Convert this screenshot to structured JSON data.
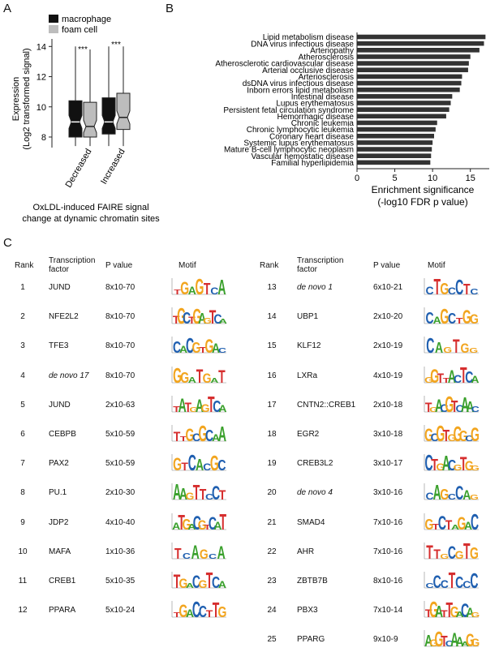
{
  "panels": {
    "a": "A",
    "b": "B",
    "c": "C"
  },
  "panel_a": {
    "legend": [
      "macrophage",
      "foam cell"
    ],
    "colors": {
      "macrophage": "#111111",
      "foam_cell": "#bdbdbd"
    },
    "ylabel": [
      "Expression",
      "(Log2 transformed signal)"
    ],
    "yticks": [
      "8",
      "10",
      "12",
      "14"
    ],
    "categories": [
      "Decreased",
      "Increased"
    ],
    "significance": [
      "***",
      "***"
    ],
    "xlabel": [
      "OxLDL-induced FAIRE signal",
      "change at dynamic chromatin sites"
    ]
  },
  "panel_b": {
    "xlabel": [
      "Enrichment significance",
      "(-log10 FDR p value)"
    ],
    "xticks": [
      "0",
      "5",
      "10",
      "15"
    ]
  },
  "chart_data": [
    {
      "type": "box",
      "categories": [
        "Decreased",
        "Increased"
      ],
      "series": [
        {
          "name": "macrophage",
          "values": [
            {
              "min": 7.4,
              "q1": 8.0,
              "median": 9.0,
              "q3": 10.4,
              "max": 14.0
            },
            {
              "min": 7.4,
              "q1": 8.2,
              "median": 9.0,
              "q3": 10.6,
              "max": 14.0
            }
          ]
        },
        {
          "name": "foam cell",
          "values": [
            {
              "min": 7.4,
              "q1": 8.0,
              "median": 8.7,
              "q3": 10.3,
              "max": 13.8
            },
            {
              "min": 7.4,
              "q1": 8.5,
              "median": 9.3,
              "q3": 10.9,
              "max": 14.0
            }
          ]
        }
      ],
      "ylim": [
        7.3,
        14.5
      ]
    },
    {
      "type": "bar",
      "orientation": "horizontal",
      "categories": [
        "Lipid metabolism disease",
        "DNA virus infectious disease",
        "Arteriopathy",
        "Atherosclerosis",
        "Atherosclerotic cardiovascular disease",
        "Arterial occlusive disease",
        "Arteriosclerosis",
        "dsDNA virus infectious disease",
        "Inborn errors lipid metabolism",
        "Intestinal disease",
        "Lupus erythematosus",
        "Persistent fetal circulation syndrome",
        "Hemorrhagic disease",
        "Chronic leukemia",
        "Chronic lymphocytic leukemia",
        "Coronary heart disease",
        "Systemic lupus erythematosus",
        "Mature B-cell lymphocytic neoplasm",
        "Vascular hemostatic disease",
        "Familial hyperlipidemia"
      ],
      "values": [
        17.0,
        16.8,
        16.2,
        15.0,
        14.8,
        14.7,
        13.9,
        13.8,
        13.6,
        12.6,
        12.4,
        12.2,
        11.8,
        10.6,
        10.4,
        10.2,
        10.0,
        9.9,
        9.8,
        9.7
      ],
      "xlim": [
        0,
        17.5
      ]
    }
  ],
  "table": {
    "headers": {
      "rank": "Rank",
      "tf": [
        "Transcription",
        "factor"
      ],
      "pvalue": "P value",
      "motif": "Motif"
    },
    "rows": [
      {
        "rank": "1",
        "tf": "JUND",
        "p": "8x10-70",
        "motif": "TGAGTCA"
      },
      {
        "rank": "2",
        "tf": "NFE2L2",
        "p": "8x10-70",
        "motif": "TGCTGAGTCA"
      },
      {
        "rank": "3",
        "tf": "TFE3",
        "p": "8x10-70",
        "motif": "CACGTGAC"
      },
      {
        "rank": "4",
        "tf": "de novo 17",
        "p": "8x10-70",
        "motif": "GGATGAT"
      },
      {
        "rank": "5",
        "tf": "JUND",
        "p": "2x10-63",
        "motif": "TATGAGTCA"
      },
      {
        "rank": "6",
        "tf": "CEBPB",
        "p": "5x10-59",
        "motif": "TTGCGCAA"
      },
      {
        "rank": "7",
        "tf": "PAX2",
        "p": "5x10-59",
        "motif": "GTCACGC"
      },
      {
        "rank": "8",
        "tf": "PU.1",
        "p": "2x10-30",
        "motif": "AAGTTCCT"
      },
      {
        "rank": "9",
        "tf": "JDP2",
        "p": "4x10-40",
        "motif": "ATGACGTCAT"
      },
      {
        "rank": "10",
        "tf": "MAFA",
        "p": "1x10-36",
        "motif": "TCAGCA"
      },
      {
        "rank": "11",
        "tf": "CREB1",
        "p": "5x10-35",
        "motif": "TGACGTCA"
      },
      {
        "rank": "12",
        "tf": "PPARA",
        "p": "5x10-24",
        "motif": "TGACCTTG"
      },
      {
        "rank": "13",
        "tf": "de novo 1",
        "p": "6x10-21",
        "motif": "CTGCCTC"
      },
      {
        "rank": "14",
        "tf": "UBP1",
        "p": "2x10-20",
        "motif": "CAGCTGG"
      },
      {
        "rank": "15",
        "tf": "KLF12",
        "p": "2x10-19",
        "motif": "CAGTGG"
      },
      {
        "rank": "16",
        "tf": "LXRa",
        "p": "4x10-19",
        "motif": "GGTTACTCA"
      },
      {
        "rank": "17",
        "tf": "CNTN2::CREB1",
        "p": "2x10-18",
        "motif": "TGACGTCAAC"
      },
      {
        "rank": "18",
        "tf": "EGR2",
        "p": "3x10-18",
        "motif": "GCGTGGGCG"
      },
      {
        "rank": "19",
        "tf": "CREB3L2",
        "p": "3x10-17",
        "motif": "CTGACGTGG"
      },
      {
        "rank": "20",
        "tf": "de novo 4",
        "p": "3x10-16",
        "motif": "CAGCCAG"
      },
      {
        "rank": "21",
        "tf": "SMAD4",
        "p": "7x10-16",
        "motif": "GTCTAGAC"
      },
      {
        "rank": "22",
        "tf": "AHR",
        "p": "7x10-16",
        "motif": "TTGCGTG"
      },
      {
        "rank": "23",
        "tf": "ZBTB7B",
        "p": "8x10-16",
        "motif": "CCCTCCC"
      },
      {
        "rank": "24",
        "tf": "PBX3",
        "p": "7x10-14",
        "motif": "TGATTGACAG"
      },
      {
        "rank": "25",
        "tf": "PPARG",
        "p": "9x10-9",
        "motif": "AGGTCAAAGG"
      }
    ]
  },
  "motif_colors": {
    "A": "#3aa02c",
    "C": "#1f5fb0",
    "G": "#f2a51f",
    "T": "#d62e2e"
  }
}
